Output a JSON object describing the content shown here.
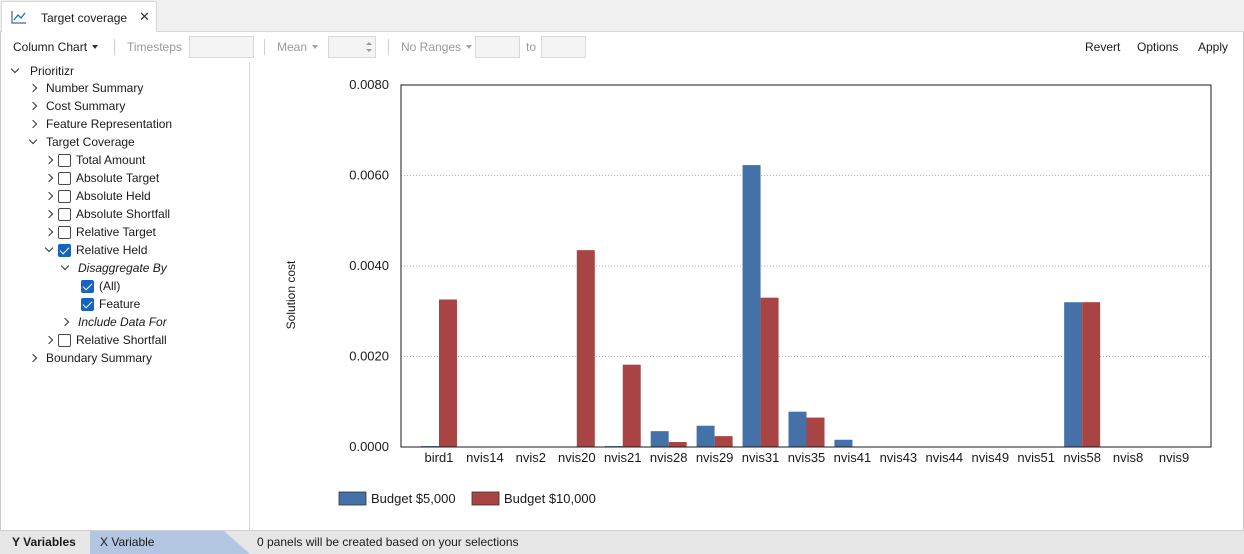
{
  "tab": {
    "title": "Target coverage",
    "icon": "line-chart-icon",
    "close_icon": "close-icon"
  },
  "toolbar": {
    "chart_type": "Column Chart",
    "timesteps_label": "Timesteps",
    "aggregate": "Mean",
    "ranges": "No Ranges",
    "to_label": "to",
    "revert": "Revert",
    "options": "Options",
    "apply": "Apply"
  },
  "tree": {
    "root": "Prioritizr",
    "number_summary": "Number Summary",
    "cost_summary": "Cost Summary",
    "feature_representation": "Feature Representation",
    "target_coverage": "Target Coverage",
    "total_amount": "Total Amount",
    "absolute_target": "Absolute Target",
    "absolute_held": "Absolute Held",
    "absolute_shortfall": "Absolute Shortfall",
    "relative_target": "Relative Target",
    "relative_held": "Relative Held",
    "disaggregate_by": "Disaggregate By",
    "all": "(All)",
    "feature": "Feature",
    "include_data_for": "Include Data For",
    "relative_shortfall": "Relative Shortfall",
    "boundary_summary": "Boundary Summary"
  },
  "bottom": {
    "y_variables": "Y Variables",
    "x_variable": "X Variable",
    "status": "0 panels will be created based on your selections"
  },
  "colors": {
    "series1": "#4472a8",
    "series2": "#a94444",
    "checkbox": "#1565c0"
  },
  "chart_data": {
    "type": "bar",
    "ylabel": "Solution cost",
    "ylim": [
      0,
      0.008
    ],
    "yticks": [
      "0.0000",
      "0.0020",
      "0.0040",
      "0.0060",
      "0.0080"
    ],
    "categories": [
      "bird1",
      "nvis14",
      "nvis2",
      "nvis20",
      "nvis21",
      "nvis28",
      "nvis29",
      "nvis31",
      "nvis35",
      "nvis41",
      "nvis43",
      "nvis44",
      "nvis49",
      "nvis51",
      "nvis58",
      "nvis8",
      "nvis9"
    ],
    "series": [
      {
        "name": "Budget $5,000",
        "color": "#4472a8",
        "values": [
          2e-05,
          0,
          0,
          0,
          2e-05,
          0.00035,
          0.00047,
          0.00623,
          0.00078,
          0.00016,
          0,
          0,
          0,
          0,
          0.0032,
          0,
          0
        ]
      },
      {
        "name": "Budget $10,000",
        "color": "#a94444",
        "values": [
          0.00326,
          0,
          0,
          0.00435,
          0.00182,
          0.00011,
          0.00024,
          0.0033,
          0.00065,
          0,
          0,
          0,
          0,
          0,
          0.0032,
          0,
          0
        ]
      }
    ],
    "grid": true,
    "legend": "bottom-left"
  }
}
